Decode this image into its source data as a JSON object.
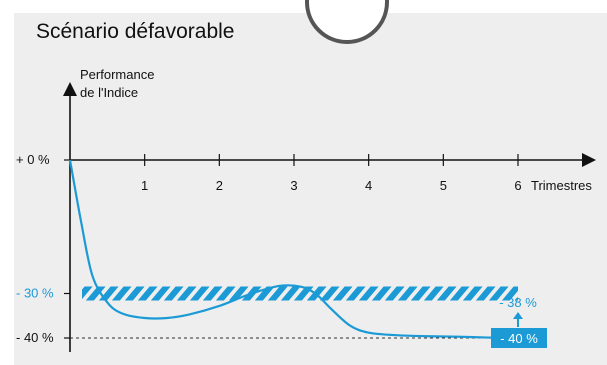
{
  "title": "Scénario défavorable",
  "colors": {
    "accent": "#1c9ad6",
    "axis": "#111111",
    "background": "#eeeeee"
  },
  "chart_data": {
    "type": "line",
    "ylabel_line1": "Performance",
    "ylabel_line2": "de l'Indice",
    "xlabel": "Trimestres",
    "x_ticks": [
      "1",
      "2",
      "3",
      "4",
      "5",
      "6"
    ],
    "xlim": [
      0,
      6
    ],
    "ylim": [
      -44,
      0
    ],
    "y_axis_labels": [
      {
        "value": 0,
        "text": "+ 0 %"
      },
      {
        "value": -30,
        "text": "- 30 %"
      },
      {
        "value": -40,
        "text": "- 40 %"
      }
    ],
    "barrier": {
      "value": -30,
      "label": "- 30 %",
      "style": "hatched"
    },
    "reference_line": {
      "value": -40,
      "style": "dashed"
    },
    "series": [
      {
        "color": "#1c9ad6",
        "x": [
          0,
          0.15,
          0.3,
          0.5,
          0.7,
          1.0,
          1.3,
          1.6,
          2.0,
          2.4,
          2.8,
          3.1,
          3.3,
          3.5,
          3.75,
          4.0,
          4.4,
          4.8,
          5.2,
          5.6,
          6.0
        ],
        "y": [
          0,
          -14,
          -26,
          -32,
          -34.5,
          -35.5,
          -35.5,
          -34.7,
          -32.8,
          -30.2,
          -28.3,
          -28.5,
          -30.2,
          -33.5,
          -37.2,
          -38.8,
          -39.4,
          -39.6,
          -39.7,
          -39.9,
          -40
        ]
      }
    ],
    "annotations": [
      {
        "text": "- 38 %",
        "x": 6.0,
        "y": -36
      },
      {
        "text": "- 40 %",
        "x": 6.0,
        "y": -40,
        "boxed": true
      }
    ]
  }
}
